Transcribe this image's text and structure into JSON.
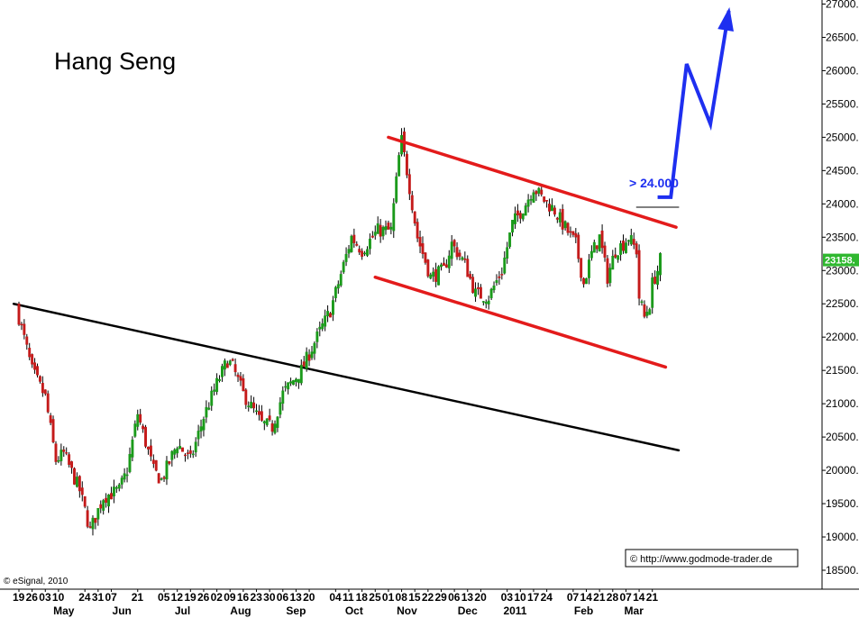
{
  "chart_data": {
    "type": "candlestick",
    "title": "Hang Seng",
    "y_ticks": [
      27000,
      26500,
      26000,
      25500,
      25000,
      24500,
      24000,
      23500,
      23000,
      22500,
      22000,
      21500,
      21000,
      20500,
      20000,
      19500,
      19000,
      18500
    ],
    "y_tick_labels": [
      "27000.",
      "26500.",
      "26000.",
      "25500.",
      "25000.",
      "24500.",
      "24000.",
      "23500.",
      "23000.",
      "22500.",
      "22000.",
      "21500.",
      "21000.",
      "20500.",
      "20000.",
      "19500.",
      "19000.",
      "18500."
    ],
    "ylim": [
      18300,
      27050
    ],
    "last_price": 23158,
    "last_price_label": "23158.",
    "x_day_labels": [
      {
        "date": "2010-04-19",
        "label": "19"
      },
      {
        "date": "2010-04-26",
        "label": "26"
      },
      {
        "date": "2010-05-03",
        "label": "03"
      },
      {
        "date": "2010-05-10",
        "label": "10"
      },
      {
        "date": "2010-05-24",
        "label": "24"
      },
      {
        "date": "2010-05-31",
        "label": "31"
      },
      {
        "date": "2010-06-07",
        "label": "07"
      },
      {
        "date": "2010-06-21",
        "label": "21"
      },
      {
        "date": "2010-07-05",
        "label": "05"
      },
      {
        "date": "2010-07-12",
        "label": "12"
      },
      {
        "date": "2010-07-19",
        "label": "19"
      },
      {
        "date": "2010-07-26",
        "label": "26"
      },
      {
        "date": "2010-08-02",
        "label": "02"
      },
      {
        "date": "2010-08-09",
        "label": "09"
      },
      {
        "date": "2010-08-16",
        "label": "16"
      },
      {
        "date": "2010-08-23",
        "label": "23"
      },
      {
        "date": "2010-08-30",
        "label": "30"
      },
      {
        "date": "2010-09-06",
        "label": "06"
      },
      {
        "date": "2010-09-13",
        "label": "13"
      },
      {
        "date": "2010-09-20",
        "label": "20"
      },
      {
        "date": "2010-10-04",
        "label": "04"
      },
      {
        "date": "2010-10-11",
        "label": "11"
      },
      {
        "date": "2010-10-18",
        "label": "18"
      },
      {
        "date": "2010-10-25",
        "label": "25"
      },
      {
        "date": "2010-11-01",
        "label": "01"
      },
      {
        "date": "2010-11-08",
        "label": "08"
      },
      {
        "date": "2010-11-15",
        "label": "15"
      },
      {
        "date": "2010-11-22",
        "label": "22"
      },
      {
        "date": "2010-11-29",
        "label": "29"
      },
      {
        "date": "2010-12-06",
        "label": "06"
      },
      {
        "date": "2010-12-13",
        "label": "13"
      },
      {
        "date": "2010-12-20",
        "label": "20"
      },
      {
        "date": "2011-01-03",
        "label": "03"
      },
      {
        "date": "2011-01-10",
        "label": "10"
      },
      {
        "date": "2011-01-17",
        "label": "17"
      },
      {
        "date": "2011-01-24",
        "label": "24"
      },
      {
        "date": "2011-02-07",
        "label": "07"
      },
      {
        "date": "2011-02-14",
        "label": "14"
      },
      {
        "date": "2011-02-21",
        "label": "21"
      },
      {
        "date": "2011-02-28",
        "label": "28"
      },
      {
        "date": "2011-03-07",
        "label": "07"
      },
      {
        "date": "2011-03-14",
        "label": "14"
      },
      {
        "date": "2011-03-21",
        "label": "21"
      }
    ],
    "x_month_labels": [
      {
        "date": "2010-05-12",
        "label": "May"
      },
      {
        "date": "2010-06-11",
        "label": "Jun"
      },
      {
        "date": "2010-07-14",
        "label": "Jul"
      },
      {
        "date": "2010-08-13",
        "label": "Aug"
      },
      {
        "date": "2010-09-12",
        "label": "Sep"
      },
      {
        "date": "2010-10-13",
        "label": "Oct"
      },
      {
        "date": "2010-11-10",
        "label": "Nov"
      },
      {
        "date": "2010-12-12",
        "label": "Dec"
      },
      {
        "date": "2011-01-06",
        "label": "2011"
      },
      {
        "date": "2011-02-11",
        "label": "Feb"
      },
      {
        "date": "2011-03-10",
        "label": "Mar"
      }
    ],
    "key_closes": [
      {
        "date": "2010-04-19",
        "close": 22300
      },
      {
        "date": "2010-04-26",
        "close": 21500
      },
      {
        "date": "2010-05-03",
        "close": 21100
      },
      {
        "date": "2010-05-07",
        "close": 20150
      },
      {
        "date": "2010-05-12",
        "close": 20250
      },
      {
        "date": "2010-05-20",
        "close": 19700
      },
      {
        "date": "2010-05-26",
        "close": 19100
      },
      {
        "date": "2010-06-02",
        "close": 19600
      },
      {
        "date": "2010-06-10",
        "close": 19700
      },
      {
        "date": "2010-06-15",
        "close": 20000
      },
      {
        "date": "2010-06-21",
        "close": 20850
      },
      {
        "date": "2010-06-29",
        "close": 20000
      },
      {
        "date": "2010-07-02",
        "close": 19850
      },
      {
        "date": "2010-07-12",
        "close": 20400
      },
      {
        "date": "2010-07-19",
        "close": 20150
      },
      {
        "date": "2010-07-26",
        "close": 20800
      },
      {
        "date": "2010-08-02",
        "close": 21300
      },
      {
        "date": "2010-08-06",
        "close": 21650
      },
      {
        "date": "2010-08-10",
        "close": 21550
      },
      {
        "date": "2010-08-16",
        "close": 21150
      },
      {
        "date": "2010-08-25",
        "close": 20700
      },
      {
        "date": "2010-08-31",
        "close": 20650
      },
      {
        "date": "2010-09-06",
        "close": 21150
      },
      {
        "date": "2010-09-15",
        "close": 21500
      },
      {
        "date": "2010-09-23",
        "close": 22000
      },
      {
        "date": "2010-09-30",
        "close": 22400
      },
      {
        "date": "2010-10-05",
        "close": 22800
      },
      {
        "date": "2010-10-12",
        "close": 23500
      },
      {
        "date": "2010-10-18",
        "close": 23300
      },
      {
        "date": "2010-10-26",
        "close": 23600
      },
      {
        "date": "2010-11-02",
        "close": 23600
      },
      {
        "date": "2010-11-05",
        "close": 24700
      },
      {
        "date": "2010-11-08",
        "close": 24950
      },
      {
        "date": "2010-11-10",
        "close": 24500
      },
      {
        "date": "2010-11-16",
        "close": 23500
      },
      {
        "date": "2010-11-23",
        "close": 22900
      },
      {
        "date": "2010-11-30",
        "close": 23000
      },
      {
        "date": "2010-12-03",
        "close": 23400
      },
      {
        "date": "2010-12-10",
        "close": 23100
      },
      {
        "date": "2010-12-16",
        "close": 22650
      },
      {
        "date": "2010-12-23",
        "close": 22600
      },
      {
        "date": "2010-12-30",
        "close": 23000
      },
      {
        "date": "2011-01-05",
        "close": 23700
      },
      {
        "date": "2011-01-12",
        "close": 24000
      },
      {
        "date": "2011-01-17",
        "close": 24250
      },
      {
        "date": "2011-01-20",
        "close": 24100
      },
      {
        "date": "2011-01-27",
        "close": 23900
      },
      {
        "date": "2011-02-01",
        "close": 23700
      },
      {
        "date": "2011-02-08",
        "close": 23400
      },
      {
        "date": "2011-02-11",
        "close": 22800
      },
      {
        "date": "2011-02-16",
        "close": 23250
      },
      {
        "date": "2011-02-21",
        "close": 23500
      },
      {
        "date": "2011-02-24",
        "close": 22900
      },
      {
        "date": "2011-03-01",
        "close": 23300
      },
      {
        "date": "2011-03-04",
        "close": 23400
      },
      {
        "date": "2011-03-08",
        "close": 23500
      },
      {
        "date": "2011-03-11",
        "close": 23300
      },
      {
        "date": "2011-03-14",
        "close": 22600
      },
      {
        "date": "2011-03-16",
        "close": 22300
      },
      {
        "date": "2011-03-18",
        "close": 22500
      },
      {
        "date": "2011-03-21",
        "close": 22800
      },
      {
        "date": "2011-03-23",
        "close": 23000
      },
      {
        "date": "2011-03-24",
        "close": 23158
      }
    ],
    "trendlines": [
      {
        "color": "#e31b1b",
        "from": {
          "date": "2010-11-01",
          "value": 25000
        },
        "to": {
          "date": "2011-04-01",
          "value": 23650
        }
      },
      {
        "color": "#e31b1b",
        "from": {
          "date": "2010-10-25",
          "value": 22900
        },
        "to": {
          "date": "2011-03-27",
          "value": 21550
        }
      },
      {
        "color": "#000000",
        "from": {
          "date": "2010-04-15",
          "value": 22500
        },
        "to": {
          "date": "2011-04-03",
          "value": 20300
        }
      },
      {
        "color": "#000000",
        "from": {
          "date": "2011-03-11",
          "value": 23950
        },
        "to": {
          "date": "2011-04-03",
          "value": 23950
        }
      }
    ],
    "projection": {
      "color": "#1e2ff0",
      "label": "> 24.000",
      "points": [
        {
          "date": "2011-03-23",
          "value": 24100
        },
        {
          "date": "2011-03-30",
          "value": 24100
        },
        {
          "date": "2011-04-07",
          "value": 26100
        },
        {
          "date": "2011-04-20",
          "value": 25200
        },
        {
          "date": "2011-04-29",
          "value": 26900
        }
      ]
    },
    "grid": false,
    "legend": "none"
  },
  "credits": {
    "esignal": "© eSignal, 2010",
    "source": "© http://www.godmode-trader.de"
  }
}
